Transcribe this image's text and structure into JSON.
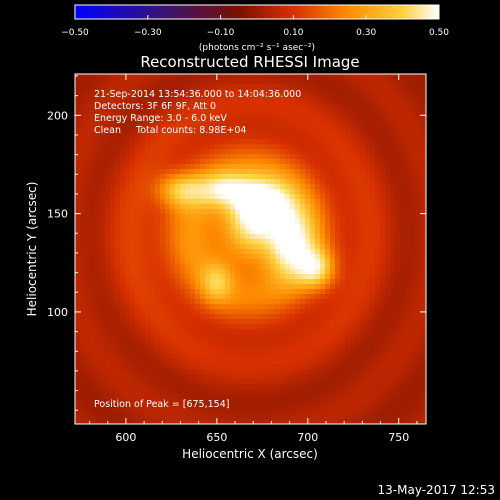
{
  "chart_data": {
    "type": "heatmap",
    "title": "Reconstructed RHESSI Image",
    "xlabel": "Heliocentric X (arcsec)",
    "ylabel": "Heliocentric Y (arcsec)",
    "xlim": [
      572,
      765
    ],
    "ylim": [
      43,
      221
    ],
    "x_ticks": [
      600,
      650,
      700,
      750
    ],
    "y_ticks": [
      100,
      150,
      200
    ],
    "x_tick_labels": [
      "600",
      "650",
      "700",
      "750"
    ],
    "y_tick_labels": [
      "100",
      "150",
      "200"
    ],
    "colorbar": {
      "range": [
        -0.5,
        0.5
      ],
      "ticks": [
        -0.5,
        -0.3,
        -0.1,
        0.1,
        0.3,
        0.5
      ],
      "tick_labels": [
        "−0.50",
        "−0.30",
        "−0.10",
        "0.10",
        "0.30",
        "0.50"
      ],
      "units": "(photons cm⁻² s⁻¹ asec⁻²)",
      "colors": [
        "#0000ff",
        "#3a1470",
        "#7a1000",
        "#d83000",
        "#ff8c00",
        "#ffd040",
        "#ffffff"
      ]
    },
    "annotations": {
      "time": "21-Sep-2014 13:54:36.000 to 14:04:36.000",
      "detectors": "Detectors: 3F 6F 9F, Att 0",
      "energy": "Energy Range: 3.0 - 6.0 keV",
      "clean": "Clean     Total counts: 8.98E+04",
      "peak": "Position of Peak = [675,154]"
    },
    "sources": [
      {
        "x": 675,
        "y": 154,
        "intensity": 1.0,
        "sigma_x": 11,
        "sigma_y": 9
      },
      {
        "x": 690,
        "y": 135,
        "intensity": 0.75,
        "sigma_x": 9,
        "sigma_y": 12
      },
      {
        "x": 705,
        "y": 122,
        "intensity": 0.6,
        "sigma_x": 7,
        "sigma_y": 7
      },
      {
        "x": 655,
        "y": 162,
        "intensity": 0.55,
        "sigma_x": 10,
        "sigma_y": 6
      },
      {
        "x": 630,
        "y": 162,
        "intensity": 0.5,
        "sigma_x": 9,
        "sigma_y": 6
      },
      {
        "x": 650,
        "y": 115,
        "intensity": 0.35,
        "sigma_x": 6,
        "sigma_y": 7
      },
      {
        "x": 665,
        "y": 140,
        "intensity": 0.55,
        "sigma_x": 40,
        "sigma_y": 35
      }
    ],
    "grid": false
  },
  "footer": {
    "timestamp": "13-May-2017 12:53"
  }
}
